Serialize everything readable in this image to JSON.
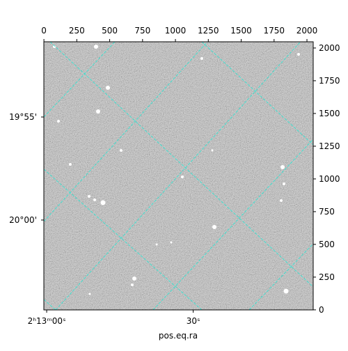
{
  "chart_data": {
    "type": "image",
    "xlabel": "pos.eq.ra",
    "xlim": [
      -0.5,
      2047.5
    ],
    "ylim": [
      -0.5,
      2047.5
    ],
    "xticks": [
      0,
      250,
      500,
      750,
      1000,
      1250,
      1500,
      1750,
      2000
    ],
    "yticks": [
      0,
      250,
      500,
      750,
      1000,
      1250,
      1500,
      1750,
      2000
    ],
    "ra_ticks": [
      {
        "value": 21,
        "label": "2ʰ13ᵐ00ˢ"
      },
      {
        "value": 1135,
        "label": "30ˢ"
      }
    ],
    "dec_ticks": [
      {
        "value": 1473,
        "label": "19°55'"
      },
      {
        "value": 686,
        "label": "20°00'"
      }
    ],
    "grid_color": "#40e0d0"
  }
}
